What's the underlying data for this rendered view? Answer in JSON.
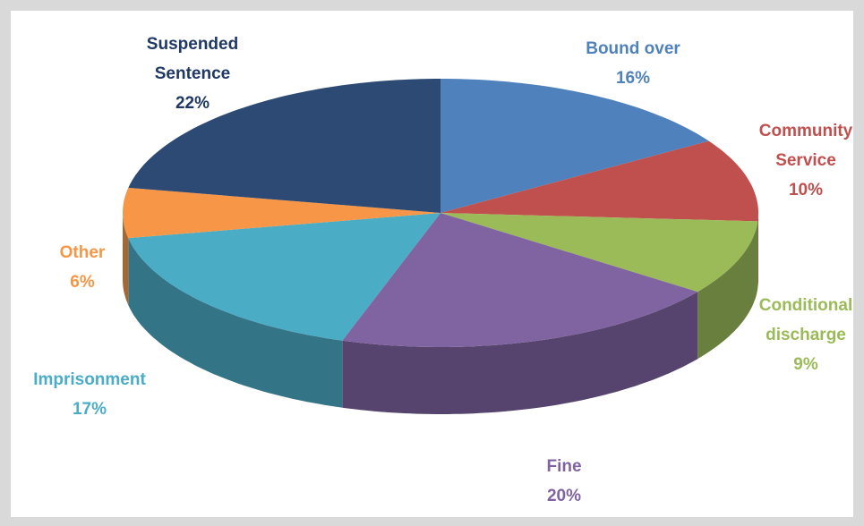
{
  "chart_data": {
    "type": "pie",
    "categories": [
      "Bound over",
      "Community Service",
      "Conditional discharge",
      "Fine",
      "Imprisonment",
      "Other",
      "Suspended Sentence"
    ],
    "values": [
      16,
      10,
      9,
      20,
      17,
      6,
      22
    ],
    "value_labels": [
      "16%",
      "10%",
      "9%",
      "20%",
      "17%",
      "6%",
      "22%"
    ],
    "colors": [
      "#4f81bd",
      "#c0504d",
      "#9bbb59",
      "#8064a2",
      "#4bacc6",
      "#f79646",
      "#2c4a74"
    ],
    "label_colors": [
      "#4f81bd",
      "#c0504d",
      "#9bbb59",
      "#8064a2",
      "#4bacc6",
      "#f79646",
      "#1f3864"
    ]
  }
}
